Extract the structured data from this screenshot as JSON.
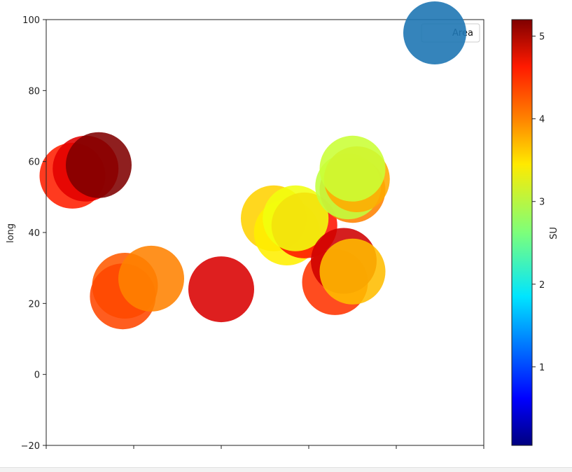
{
  "chart_data": {
    "type": "scatter",
    "title": "",
    "xlabel": "",
    "ylabel": "long",
    "xlim": [
      0,
      10
    ],
    "ylim": [
      -20,
      100
    ],
    "yticks": [
      -20,
      0,
      20,
      40,
      60,
      80,
      100
    ],
    "xticks": [
      0,
      2,
      4,
      6,
      8,
      10
    ],
    "grid": false,
    "legend": {
      "label": "Area",
      "placement": "top-right"
    },
    "colorbar": {
      "label": "SU",
      "range": [
        0.05,
        5.2
      ],
      "ticks": [
        1,
        2,
        3,
        4,
        5
      ],
      "colormap": "jet"
    },
    "legend_marker_color": "#1f77b4",
    "points": [
      {
        "x": 0.6,
        "y": 56,
        "c": 4.4
      },
      {
        "x": 0.9,
        "y": 58,
        "c": 4.7
      },
      {
        "x": 1.2,
        "y": 59,
        "c": 5.2
      },
      {
        "x": 1.8,
        "y": 25,
        "c": 4.1
      },
      {
        "x": 1.75,
        "y": 22,
        "c": 4.2
      },
      {
        "x": 2.4,
        "y": 27,
        "c": 3.9
      },
      {
        "x": 4.0,
        "y": 24,
        "c": 4.75
      },
      {
        "x": 5.2,
        "y": 44,
        "c": 3.5
      },
      {
        "x": 5.5,
        "y": 40,
        "c": 3.35
      },
      {
        "x": 5.9,
        "y": 42,
        "c": 4.45
      },
      {
        "x": 5.7,
        "y": 44,
        "c": 3.2
      },
      {
        "x": 6.6,
        "y": 26,
        "c": 4.3
      },
      {
        "x": 6.8,
        "y": 32,
        "c": 4.8
      },
      {
        "x": 7.0,
        "y": 29,
        "c": 3.6
      },
      {
        "x": 7.0,
        "y": 52,
        "c": 3.9
      },
      {
        "x": 6.9,
        "y": 53,
        "c": 2.95
      },
      {
        "x": 7.1,
        "y": 55,
        "c": 3.7
      },
      {
        "x": 7.0,
        "y": 58,
        "c": 3.0
      }
    ]
  }
}
